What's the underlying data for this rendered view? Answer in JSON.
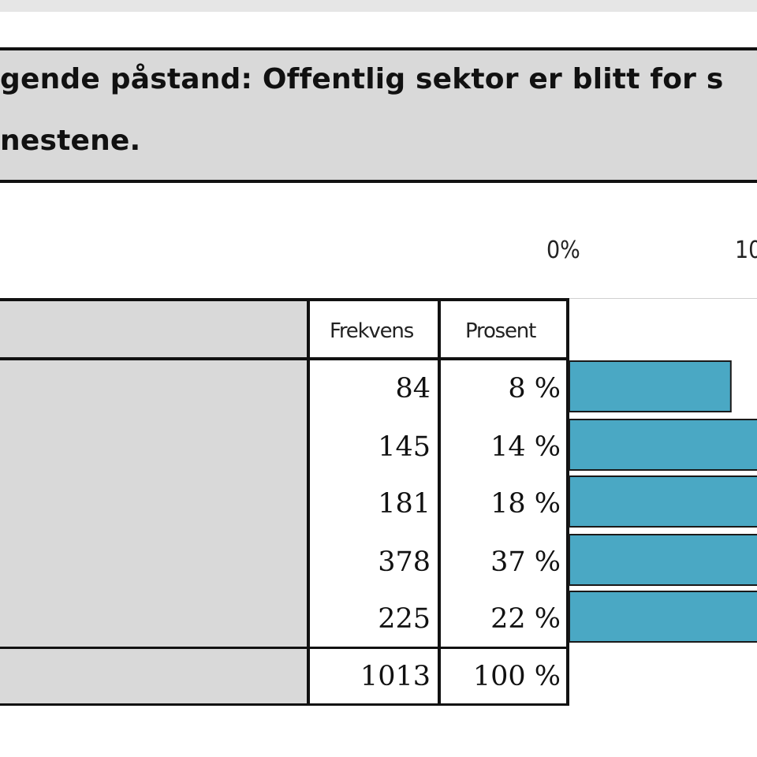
{
  "title": {
    "line1": "gende påstand: Offentlig sektor er blitt for s",
    "line2": "nestene."
  },
  "axis": {
    "tick0": "0%",
    "tick1": "10"
  },
  "table": {
    "headers": {
      "freq": "Frekvens",
      "pct": "Prosent"
    },
    "rows": [
      {
        "freq": "84",
        "pct": "8 %"
      },
      {
        "freq": "145",
        "pct": "14 %"
      },
      {
        "freq": "181",
        "pct": "18 %"
      },
      {
        "freq": "378",
        "pct": "37 %"
      },
      {
        "freq": "225",
        "pct": "22 %"
      }
    ],
    "total": {
      "freq": "1013",
      "pct": "100 %"
    }
  },
  "chart_data": {
    "type": "bar",
    "orientation": "horizontal",
    "values": [
      8,
      14,
      18,
      37,
      22
    ],
    "xlim": [
      0,
      100
    ],
    "x_ticks_visible": [
      "0%",
      "10"
    ],
    "bar_color": "#4aa8c4",
    "grid": false
  }
}
